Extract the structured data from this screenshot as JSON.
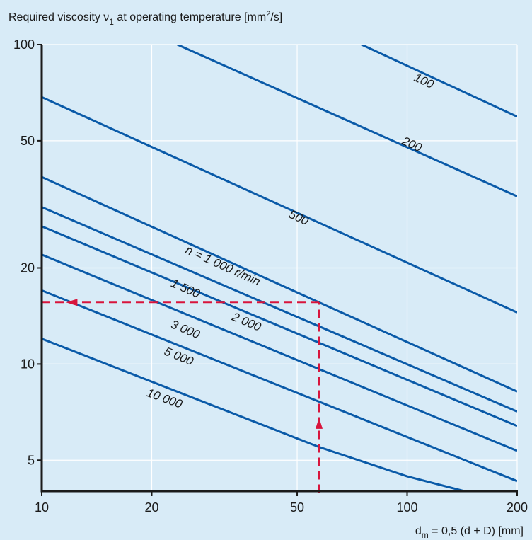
{
  "chart_data": {
    "type": "line",
    "title": "",
    "ylabel_main": "Required viscosity ν",
    "ylabel_sub": "1",
    "ylabel_rest": " at operating temperature [mm",
    "ylabel_sup": "2",
    "ylabel_end": "/s]",
    "xlabel_main": "d",
    "xlabel_sub": "m",
    "xlabel_rest": " = 0,5 (d + D) [mm]",
    "x_scale": "log",
    "y_scale": "log",
    "xlim": [
      10,
      200
    ],
    "ylim": [
      4,
      100
    ],
    "x_ticks": [
      {
        "value": 10,
        "label": "10"
      },
      {
        "value": 20,
        "label": "20"
      },
      {
        "value": 50,
        "label": "50"
      },
      {
        "value": 100,
        "label": "100"
      },
      {
        "value": 200,
        "label": "200"
      }
    ],
    "y_ticks": [
      {
        "value": 100,
        "label": "100"
      },
      {
        "value": 50,
        "label": "50"
      },
      {
        "value": 20,
        "label": "20"
      },
      {
        "value": 10,
        "label": "10"
      },
      {
        "value": 5,
        "label": "5"
      }
    ],
    "grid": true,
    "line_color": "#0a5aa8",
    "example_color": "#d8143c",
    "series": [
      {
        "name": "100",
        "label": "100",
        "points": [
          [
            75,
            100
          ],
          [
            200,
            59.5
          ]
        ],
        "label_at": [
          110,
          75
        ]
      },
      {
        "name": "200",
        "label": "200",
        "points": [
          [
            23.5,
            100
          ],
          [
            200,
            33.5
          ]
        ],
        "label_at": [
          102,
          47.5
        ]
      },
      {
        "name": "500",
        "label": "500",
        "points": [
          [
            10,
            68.5
          ],
          [
            200,
            14.5
          ]
        ],
        "label_at": [
          50,
          28
        ]
      },
      {
        "name": "1 000",
        "label": "n = 1 000 r/min",
        "points": [
          [
            10,
            38.5
          ],
          [
            57.4,
            15.6
          ],
          [
            200,
            8.2
          ]
        ],
        "label_at": [
          31,
          19.8
        ]
      },
      {
        "name": "1 500",
        "label": "1 500",
        "points": [
          [
            10,
            31
          ],
          [
            200,
            7.1
          ]
        ],
        "label_at": [
          24.5,
          16.8
        ]
      },
      {
        "name": "2 000",
        "label": "2 000",
        "points": [
          [
            10,
            27
          ],
          [
            200,
            6.4
          ]
        ],
        "label_at": [
          36,
          13.2
        ]
      },
      {
        "name": "3 000",
        "label": "3 000",
        "points": [
          [
            10,
            22
          ],
          [
            200,
            5.35
          ]
        ],
        "label_at": [
          24.5,
          12.5
        ]
      },
      {
        "name": "5 000",
        "label": "5 000",
        "points": [
          [
            10,
            17
          ],
          [
            200,
            4.3
          ]
        ],
        "label_at": [
          23.5,
          10.3
        ]
      },
      {
        "name": "10 000",
        "label": "10 000",
        "points": [
          [
            10,
            12
          ],
          [
            57.4,
            5.5
          ],
          [
            100,
            4.45
          ],
          [
            150,
            3.95
          ]
        ],
        "label_at": [
          21.5,
          7.6
        ]
      }
    ],
    "example": {
      "dm": 57.4,
      "viscosity": 15.6,
      "start_y": 3.95,
      "arrow_up_at": 6.4,
      "arrow_left_at": 12.3
    }
  }
}
